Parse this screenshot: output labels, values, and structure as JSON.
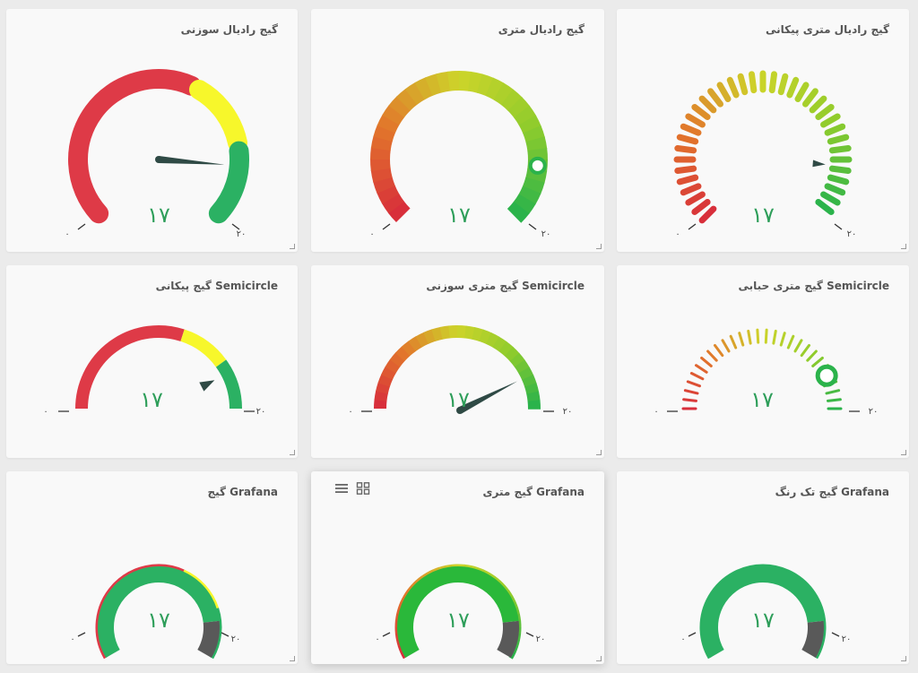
{
  "cards": [
    {
      "title": "گیج رادیال سوزنی",
      "value": "۱۷",
      "min_label": "۰",
      "max_label": "۲۰"
    },
    {
      "title": "گیج رادیال متری",
      "value": "۱۷",
      "min_label": "۰",
      "max_label": "۲۰"
    },
    {
      "title": "گیج رادیال متری پیکانی",
      "value": "۱۷",
      "min_label": "۰",
      "max_label": "۲۰"
    },
    {
      "title": "گیج پیکانی Semicircle",
      "value": "۱۷",
      "min_label": "۰",
      "max_label": "۲۰"
    },
    {
      "title": "گیج متری سوزنی Semicircle",
      "value": "۱۷",
      "min_label": "۰",
      "max_label": "۲۰"
    },
    {
      "title": "گیج متری حبابی Semicircle",
      "value": "۱۷",
      "min_label": "۰",
      "max_label": "۲۰"
    },
    {
      "title": "گیج Grafana",
      "value": "۱۷",
      "min_label": "۰",
      "max_label": "۲۰"
    },
    {
      "title": "گیج متری Grafana",
      "value": "۱۷",
      "min_label": "۰",
      "max_label": "۲۰"
    },
    {
      "title": "گیج تک رنگ Grafana",
      "value": "۱۷",
      "min_label": "۰",
      "max_label": "۲۰"
    }
  ],
  "gauge": {
    "min": 0,
    "max": 20,
    "value": 17
  },
  "toolbar_icons": [
    "menu-icon",
    "grid-icon"
  ],
  "colors": {
    "red": "#de3a47",
    "yellow": "#f7f72b",
    "green": "#2bb163",
    "value_text": "#2e9e5a",
    "dark": "#595959",
    "needle": "#2f4a45"
  }
}
